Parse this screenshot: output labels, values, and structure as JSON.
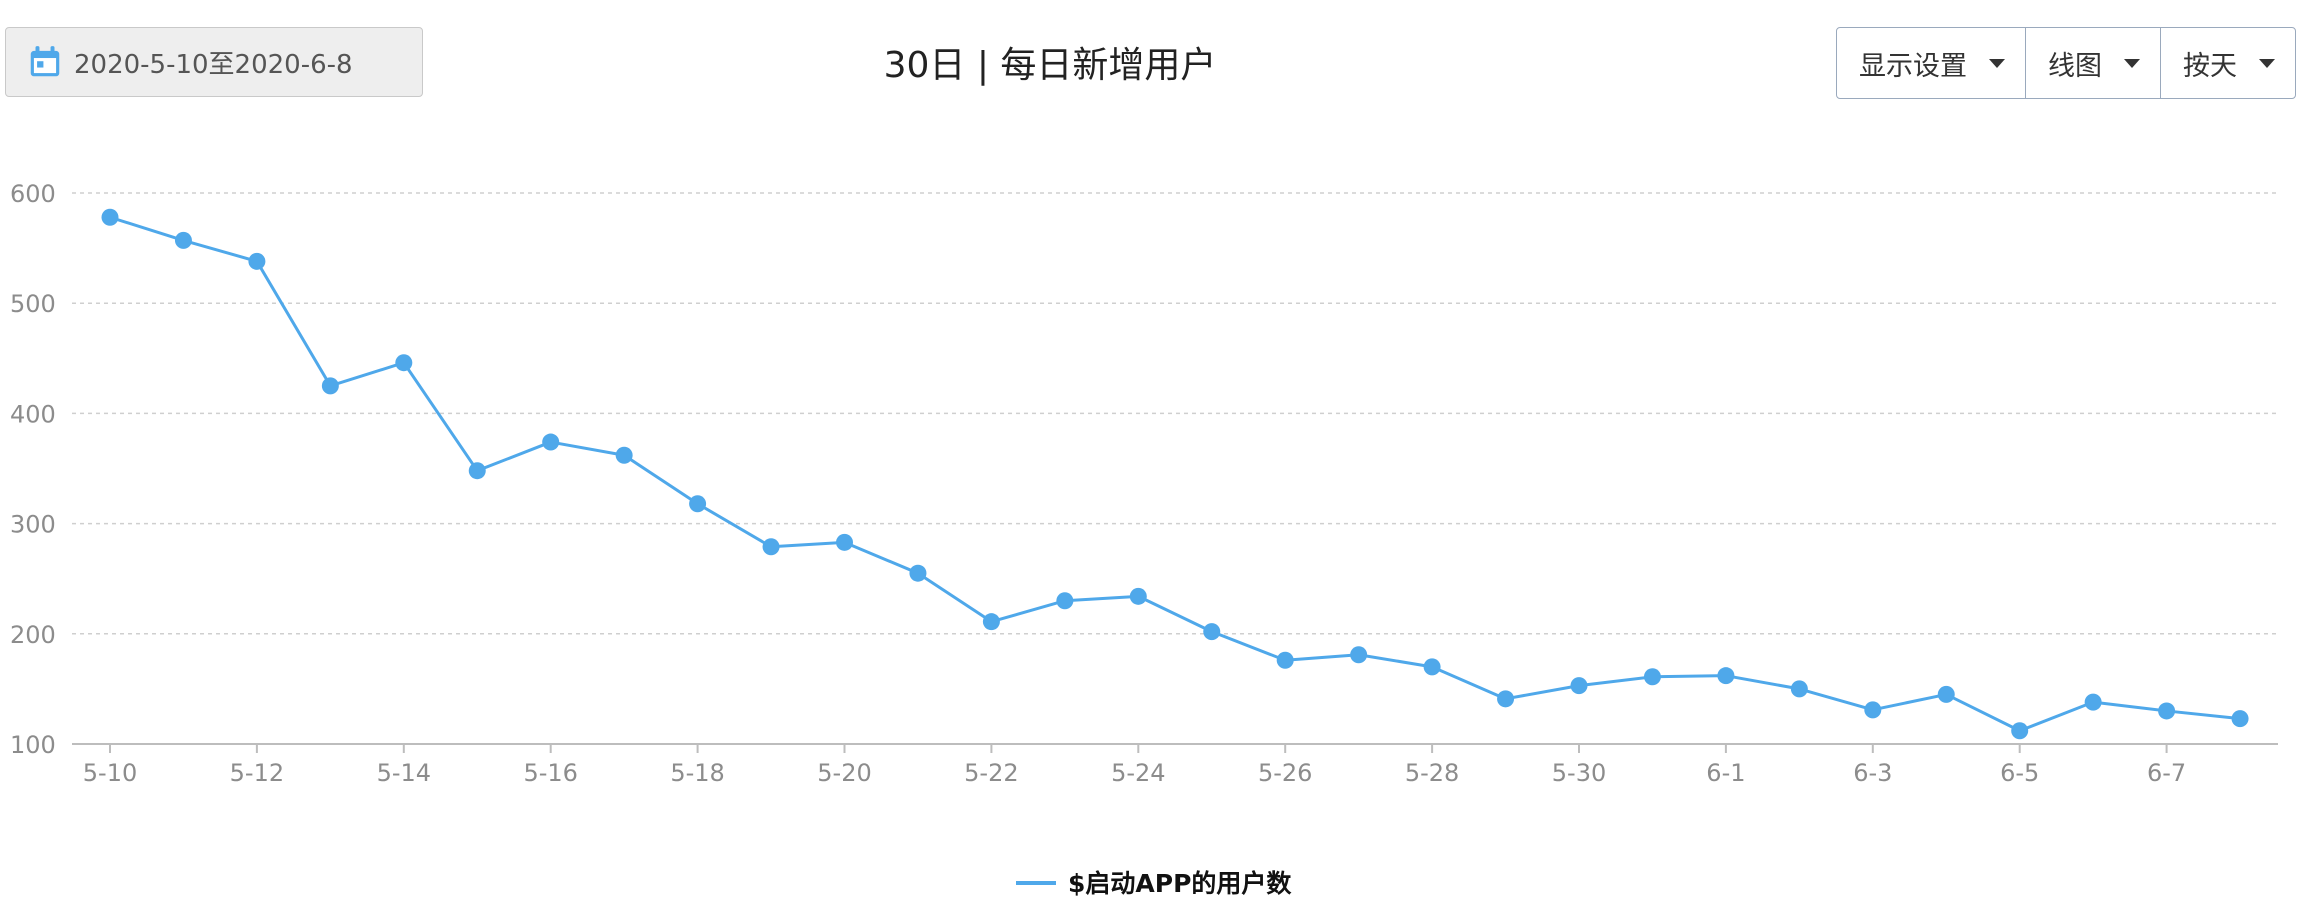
{
  "date_range": {
    "label": "2020-5-10至2020-6-8",
    "icon": "calendar-icon"
  },
  "title": "30日 | 每日新增用户",
  "controls": {
    "display_settings": "显示设置",
    "chart_type": "线图",
    "granularity": "按天"
  },
  "colors": {
    "series": "#4fa8ea",
    "grid": "#cfcfcf",
    "axis": "#bdbdbd",
    "tick": "#8c8c8c"
  },
  "chart_data": {
    "type": "line",
    "x": [
      "5-10",
      "5-11",
      "5-12",
      "5-13",
      "5-14",
      "5-15",
      "5-16",
      "5-17",
      "5-18",
      "5-19",
      "5-20",
      "5-21",
      "5-22",
      "5-23",
      "5-24",
      "5-25",
      "5-26",
      "5-27",
      "5-28",
      "5-29",
      "5-30",
      "5-31",
      "6-1",
      "6-2",
      "6-3",
      "6-4",
      "6-5",
      "6-6",
      "6-7",
      "6-8"
    ],
    "x_tick_labels": [
      "5-10",
      "5-12",
      "5-14",
      "5-16",
      "5-18",
      "5-20",
      "5-22",
      "5-24",
      "5-26",
      "5-28",
      "5-30",
      "6-1",
      "6-3",
      "6-5",
      "6-7"
    ],
    "series": [
      {
        "name": "$启动APP的用户数",
        "values": [
          578,
          557,
          538,
          425,
          446,
          348,
          374,
          362,
          318,
          279,
          283,
          255,
          211,
          230,
          234,
          202,
          176,
          181,
          170,
          141,
          153,
          161,
          162,
          150,
          131,
          145,
          112,
          138,
          130,
          123
        ]
      }
    ],
    "ylim": [
      100,
      600
    ],
    "y_ticks": [
      100,
      200,
      300,
      400,
      500,
      600
    ],
    "grid": true,
    "legend_position": "bottom-center"
  }
}
